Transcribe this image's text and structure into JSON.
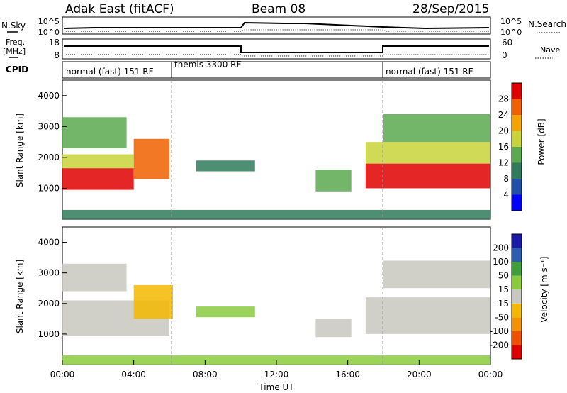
{
  "header": {
    "title_left": "Adak East (fitACF)",
    "title_center": "Beam 08",
    "title_right": "28/Sep/2015"
  },
  "strips": {
    "nsky_label": "N.Sky",
    "nsky_ticks": [
      "10^5",
      "10^0"
    ],
    "nsearch_label": "N.Search",
    "nsearch_ticks": [
      "10^5",
      "10^0"
    ],
    "freq_label": "Freq.",
    "freq_unit": "[MHz]",
    "freq_ticks": [
      "18",
      "8"
    ],
    "nave_label": "Nave",
    "nave_ticks": [
      "60",
      "0"
    ],
    "cpid_label": "CPID",
    "cpid_segments": [
      {
        "label": "normal (fast) 151 RF",
        "start": 0,
        "end": 6
      },
      {
        "label": "themis 3300 RF",
        "start": 6,
        "end": 18
      },
      {
        "label": "normal (fast) 151 RF",
        "start": 18,
        "end": 24
      }
    ]
  },
  "chart_data": [
    {
      "type": "heatmap",
      "panel": "power",
      "ylabel": "Slant Range [km]",
      "yticks": [
        "1000",
        "2000",
        "3000",
        "4000"
      ],
      "ylim": [
        0,
        4500
      ],
      "xlim": [
        0,
        24
      ],
      "colorbar_label": "Power [dB]",
      "colorbar_ticks": [
        "28",
        "24",
        "20",
        "16",
        "12",
        "8",
        "4"
      ],
      "colors": [
        "#0000ff",
        "#1f4fa8",
        "#2f7a5a",
        "#5aa84f",
        "#c8d43a",
        "#f5a300",
        "#f06000",
        "#e00000"
      ],
      "regions": [
        {
          "x0": 0.0,
          "x1": 4.0,
          "y0": 950,
          "y1": 1650,
          "level": 7
        },
        {
          "x0": 4.0,
          "x1": 6.0,
          "y0": 1300,
          "y1": 2600,
          "level": 6
        },
        {
          "x0": 0.0,
          "x1": 4.0,
          "y0": 1650,
          "y1": 2100,
          "level": 4
        },
        {
          "x0": 0.0,
          "x1": 3.6,
          "y0": 2300,
          "y1": 3300,
          "level": 3
        },
        {
          "x0": 7.5,
          "x1": 10.8,
          "y0": 1550,
          "y1": 1900,
          "level": 2
        },
        {
          "x0": 14.2,
          "x1": 16.2,
          "y0": 900,
          "y1": 1600,
          "level": 3
        },
        {
          "x0": 17.0,
          "x1": 24.0,
          "y0": 1000,
          "y1": 1800,
          "level": 7
        },
        {
          "x0": 17.0,
          "x1": 24.0,
          "y0": 1800,
          "y1": 2500,
          "level": 4
        },
        {
          "x0": 18.0,
          "x1": 24.0,
          "y0": 2500,
          "y1": 3400,
          "level": 3
        },
        {
          "x0": 0.0,
          "x1": 24.0,
          "y0": 0,
          "y1": 300,
          "level": 2
        }
      ]
    },
    {
      "type": "heatmap",
      "panel": "velocity",
      "ylabel": "Slant Range [km]",
      "yticks": [
        "1000",
        "2000",
        "3000",
        "4000"
      ],
      "ylim": [
        0,
        4500
      ],
      "xlim": [
        0,
        24
      ],
      "xticks": [
        "00:00",
        "04:00",
        "08:00",
        "12:00",
        "16:00",
        "20:00",
        "00:00"
      ],
      "xlabel": "Time UT",
      "colorbar_label": "Velocity [m s⁻¹]",
      "colorbar_ticks": [
        "200",
        "100",
        "50",
        "15",
        "-15",
        "-50",
        "-100",
        "-200"
      ],
      "colors": [
        "#e00000",
        "#f05000",
        "#f59000",
        "#f5b800",
        "#c8c8c0",
        "#8acb3e",
        "#3f9d3a",
        "#2c5bb0",
        "#1a1aa8"
      ],
      "regions": [
        {
          "x0": 0.0,
          "x1": 6.0,
          "y0": 950,
          "y1": 2100,
          "level": 4
        },
        {
          "x0": 0.0,
          "x1": 3.6,
          "y0": 2400,
          "y1": 3300,
          "level": 4
        },
        {
          "x0": 4.0,
          "x1": 6.2,
          "y0": 1500,
          "y1": 2600,
          "level": 3
        },
        {
          "x0": 7.5,
          "x1": 10.8,
          "y0": 1550,
          "y1": 1900,
          "level": 5
        },
        {
          "x0": 14.2,
          "x1": 16.2,
          "y0": 900,
          "y1": 1500,
          "level": 4
        },
        {
          "x0": 17.0,
          "x1": 24.0,
          "y0": 1000,
          "y1": 2200,
          "level": 4
        },
        {
          "x0": 18.0,
          "x1": 24.0,
          "y0": 2500,
          "y1": 3400,
          "level": 4
        },
        {
          "x0": 0.0,
          "x1": 24.0,
          "y0": 0,
          "y1": 300,
          "level": 5
        }
      ]
    }
  ]
}
